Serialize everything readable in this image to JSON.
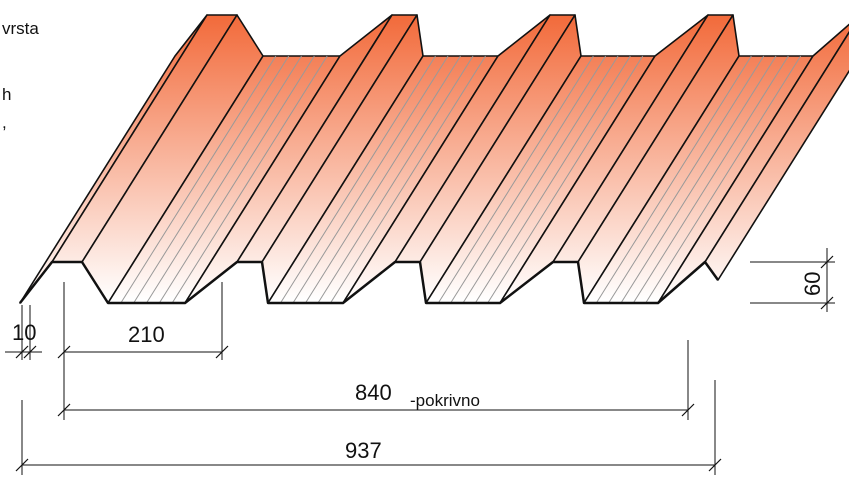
{
  "side_text": [
    "vrsta",
    "h",
    ","
  ],
  "dimensions": {
    "rib_edge": "10",
    "rib_pitch": "210",
    "cover_width": "840",
    "cover_note": "-pokrivno",
    "total_width": "937",
    "height": "60"
  }
}
